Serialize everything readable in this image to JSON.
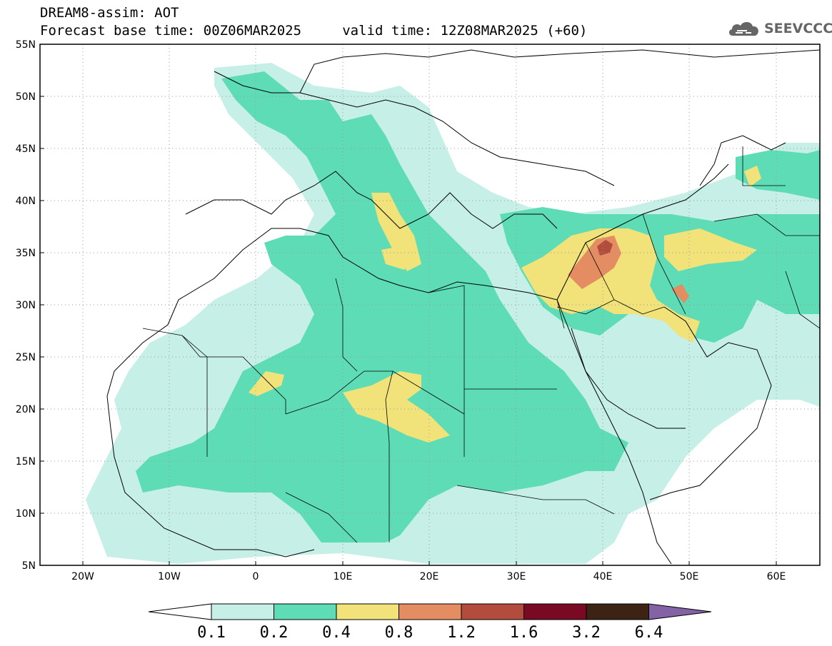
{
  "header": {
    "line1": "DREAM8-assim: AOT",
    "line2": "Forecast base time: 00Z06MAR2025     valid time: 12Z08MAR2025 (+60)"
  },
  "logo": {
    "text": "SEEVCCC",
    "icon": "cloud-icon"
  },
  "map": {
    "lat_labels": [
      "55N",
      "50N",
      "45N",
      "40N",
      "35N",
      "30N",
      "25N",
      "20N",
      "15N",
      "10N",
      "5N"
    ],
    "lon_labels": [
      "20W",
      "10W",
      "0",
      "10E",
      "20E",
      "30E",
      "40E",
      "50E",
      "60E"
    ],
    "grid": true
  },
  "colorbar": {
    "labels": [
      "0.1",
      "0.2",
      "0.4",
      "0.8",
      "1.2",
      "1.6",
      "3.2",
      "6.4"
    ],
    "colors": [
      "#ffffff",
      "#c6efe8",
      "#5ddcb5",
      "#f1e27a",
      "#e48d63",
      "#b24c3c",
      "#7a0a24",
      "#3c2313",
      "#8462a6"
    ]
  }
}
